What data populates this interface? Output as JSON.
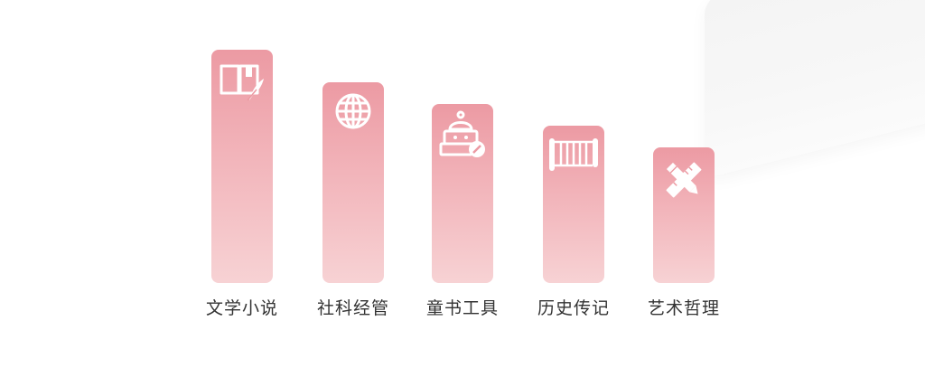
{
  "categories": [
    {
      "label": "文学小说",
      "icon": "book-quill-icon"
    },
    {
      "label": "社科经管",
      "icon": "globe-icon"
    },
    {
      "label": "童书工具",
      "icon": "robot-icon"
    },
    {
      "label": "历史传记",
      "icon": "scroll-icon"
    },
    {
      "label": "艺术哲理",
      "icon": "pencil-ruler-icon"
    }
  ],
  "colors": {
    "bar_top": "#ec9aa3",
    "bar_bottom": "#f7d2d4",
    "text": "#333333"
  }
}
